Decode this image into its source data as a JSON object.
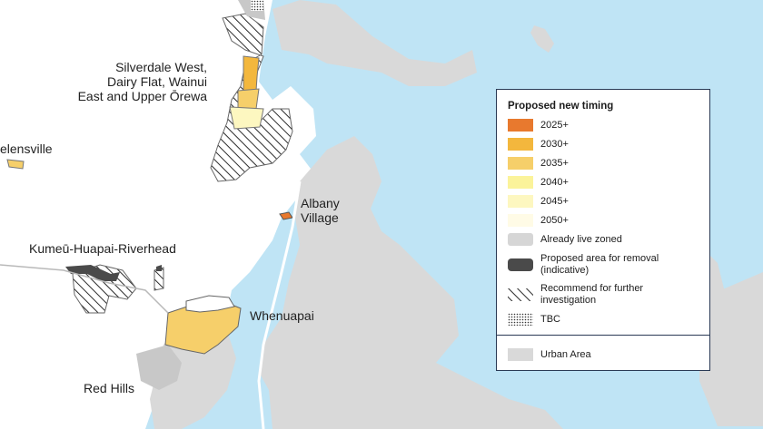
{
  "map": {
    "labels": {
      "silverdale": "Silverdale West,\nDairy Flat, Wainui\nEast and Upper Ōrewa",
      "helensville": "elensville",
      "albany": "Albany\nVillage",
      "kumeu": "Kumeū-Huapai-Riverhead",
      "whenuapai": "Whenuapai",
      "red_hills": "Red Hills"
    }
  },
  "legend": {
    "title": "Proposed new timing",
    "items": [
      {
        "label": "2025+",
        "color": "#e8792e"
      },
      {
        "label": "2030+",
        "color": "#f3b73d"
      },
      {
        "label": "2035+",
        "color": "#f6cf6a"
      },
      {
        "label": "2040+",
        "color": "#fbf39a"
      },
      {
        "label": "2045+",
        "color": "#fdf7c0"
      },
      {
        "label": "2050+",
        "color": "#fffbe6"
      },
      {
        "label": "Already live zoned",
        "color": "#d6d6d6"
      },
      {
        "label": "Proposed area for removal\n(indicative)",
        "color": "#4a4a4a"
      },
      {
        "label": "Recommend for further\ninvestigation",
        "pattern": "hatch"
      },
      {
        "label": "TBC",
        "pattern": "dots"
      }
    ],
    "urban_area_label": "Urban Area",
    "urban_area_color": "#d9d9d9"
  }
}
